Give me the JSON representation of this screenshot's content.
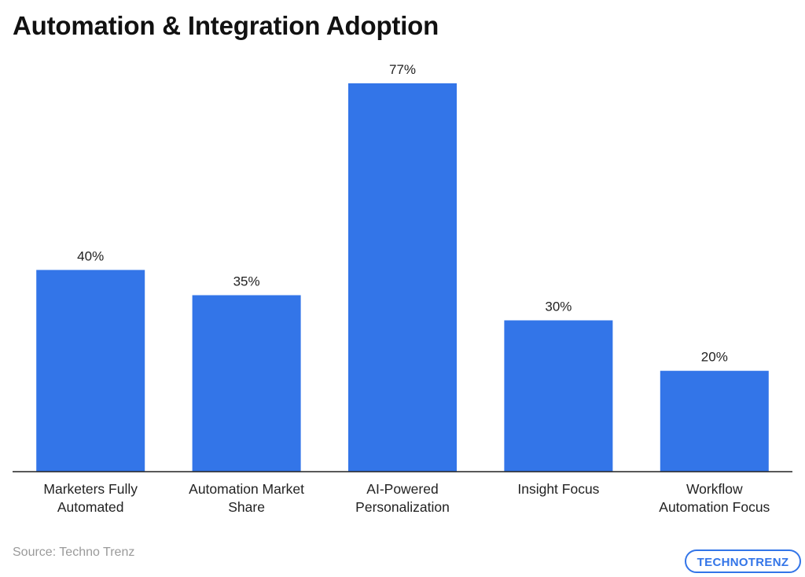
{
  "chart_data": {
    "type": "bar",
    "title": "Automation & Integration Adoption",
    "categories": [
      [
        "Marketers Fully",
        "Automated"
      ],
      [
        "Automation Market",
        "Share"
      ],
      [
        "AI-Powered",
        "Personalization"
      ],
      [
        "Insight Focus"
      ],
      [
        "Workflow",
        "Automation Focus"
      ]
    ],
    "values": [
      40,
      35,
      77,
      30,
      20
    ],
    "value_labels": [
      "40%",
      "35%",
      "77%",
      "30%",
      "20%"
    ],
    "unit": "%",
    "ylim": [
      0,
      100
    ],
    "grid": false,
    "legend": "none",
    "bar_color": "#3375e8"
  },
  "footer": {
    "source": "Source: Techno Trenz",
    "logo_text": "TECHNOTRENZ"
  },
  "colors": {
    "title": "#111111",
    "label": "#222222",
    "source": "#9a9a9a",
    "axis": "#222222",
    "logo_primary": "#3375e8",
    "logo_accent": "#8e2bd6"
  }
}
